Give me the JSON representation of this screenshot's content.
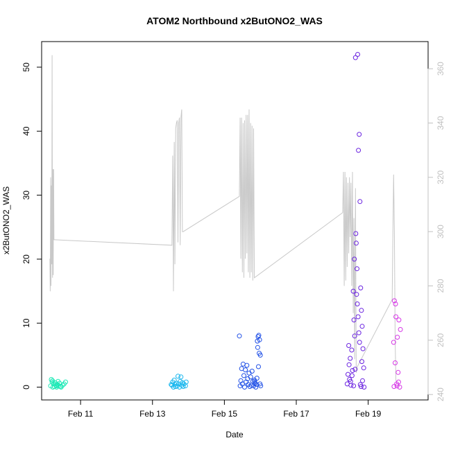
{
  "chart_data": {
    "type": "scatter",
    "title": "ATOM2 Northbound x2ButONO2_WAS",
    "xlabel": "Date",
    "ylabel": "x2ButONO2_WAS",
    "x_axis": {
      "type": "date",
      "range": [
        "2017-02-09T22:00",
        "2017-02-20T16:00"
      ],
      "ticks": [
        {
          "label": "Feb 11",
          "date": "2017-02-11"
        },
        {
          "label": "Feb 13",
          "date": "2017-02-13"
        },
        {
          "label": "Feb 15",
          "date": "2017-02-15"
        },
        {
          "label": "Feb 17",
          "date": "2017-02-17"
        },
        {
          "label": "Feb 19",
          "date": "2017-02-19"
        }
      ]
    },
    "y_axis": {
      "range": [
        -2,
        54
      ],
      "ticks": [
        0,
        10,
        20,
        30,
        40,
        50
      ]
    },
    "y2_axis": {
      "color": "#c0c0c0",
      "range": [
        238,
        370
      ],
      "ticks": [
        240,
        260,
        280,
        300,
        320,
        340,
        360
      ]
    },
    "grid": false,
    "legend": "none",
    "point_style": "open-circle",
    "line_color": "#c8c8c8",
    "series": [
      {
        "color": "#1de9b6",
        "points": [
          [
            "2017-02-10T04:00",
            0.2
          ],
          [
            "2017-02-10T04:30",
            1.2
          ],
          [
            "2017-02-10T05:00",
            0.8
          ],
          [
            "2017-02-10T05:30",
            0.0
          ],
          [
            "2017-02-10T06:00",
            0.5
          ],
          [
            "2017-02-10T06:30",
            0.1
          ],
          [
            "2017-02-10T07:00",
            0.7
          ],
          [
            "2017-02-10T07:30",
            0.3
          ],
          [
            "2017-02-10T08:00",
            0.0
          ],
          [
            "2017-02-10T08:30",
            0.4
          ],
          [
            "2017-02-10T09:00",
            0.9
          ],
          [
            "2017-02-10T09:30",
            0.2
          ],
          [
            "2017-02-10T10:00",
            0.6
          ],
          [
            "2017-02-10T10:30",
            0.1
          ],
          [
            "2017-02-10T11:00",
            0.0
          ],
          [
            "2017-02-10T12:00",
            0.3
          ],
          [
            "2017-02-10T13:00",
            0.5
          ],
          [
            "2017-02-10T14:00",
            0.8
          ],
          [
            "2017-02-10T05:15",
            1.0
          ],
          [
            "2017-02-10T08:15",
            0.2
          ]
        ]
      },
      {
        "color": "#17b6ee",
        "points": [
          [
            "2017-02-13T13:00",
            0.3
          ],
          [
            "2017-02-13T13:30",
            0.8
          ],
          [
            "2017-02-13T14:00",
            0.0
          ],
          [
            "2017-02-13T14:30",
            1.1
          ],
          [
            "2017-02-13T15:00",
            0.4
          ],
          [
            "2017-02-13T15:30",
            0.1
          ],
          [
            "2017-02-13T16:00",
            0.6
          ],
          [
            "2017-02-13T16:30",
            0.2
          ],
          [
            "2017-02-13T17:00",
            1.7
          ],
          [
            "2017-02-13T17:30",
            0.5
          ],
          [
            "2017-02-13T18:00",
            0.0
          ],
          [
            "2017-02-13T18:30",
            0.9
          ],
          [
            "2017-02-13T19:00",
            1.6
          ],
          [
            "2017-02-13T19:30",
            0.3
          ],
          [
            "2017-02-13T20:00",
            0.7
          ],
          [
            "2017-02-13T20:30",
            0.1
          ],
          [
            "2017-02-13T21:00",
            0.5
          ],
          [
            "2017-02-13T22:00",
            0.2
          ],
          [
            "2017-02-13T12:30",
            0.4
          ],
          [
            "2017-02-13T22:30",
            0.8
          ]
        ]
      },
      {
        "color": "#1f4fe6",
        "points": [
          [
            "2017-02-15T10:00",
            8.0
          ],
          [
            "2017-02-15T10:30",
            0.2
          ],
          [
            "2017-02-15T11:00",
            1.0
          ],
          [
            "2017-02-15T11:30",
            2.9
          ],
          [
            "2017-02-15T12:00",
            0.5
          ],
          [
            "2017-02-15T12:30",
            3.6
          ],
          [
            "2017-02-15T13:00",
            1.8
          ],
          [
            "2017-02-15T13:30",
            0.0
          ],
          [
            "2017-02-15T14:00",
            2.7
          ],
          [
            "2017-02-15T14:30",
            0.8
          ],
          [
            "2017-02-15T15:00",
            3.4
          ],
          [
            "2017-02-15T15:30",
            1.3
          ],
          [
            "2017-02-15T16:00",
            0.4
          ],
          [
            "2017-02-15T16:30",
            2.2
          ],
          [
            "2017-02-15T17:00",
            0.1
          ],
          [
            "2017-02-15T17:30",
            1.6
          ],
          [
            "2017-02-15T18:00",
            0.3
          ],
          [
            "2017-02-15T18:30",
            2.5
          ],
          [
            "2017-02-15T19:00",
            0.9
          ],
          [
            "2017-02-15T19:30",
            0.2
          ],
          [
            "2017-02-15T20:00",
            1.1
          ],
          [
            "2017-02-15T20:30",
            0.6
          ],
          [
            "2017-02-15T21:00",
            0.0
          ],
          [
            "2017-02-15T21:30",
            0.4
          ],
          [
            "2017-02-15T22:00",
            7.2
          ],
          [
            "2017-02-15T22:30",
            7.9
          ],
          [
            "2017-02-15T23:00",
            8.1
          ],
          [
            "2017-02-15T23:30",
            7.4
          ],
          [
            "2017-02-16T00:00",
            5.0
          ],
          [
            "2017-02-15T22:15",
            6.2
          ],
          [
            "2017-02-15T23:15",
            5.3
          ],
          [
            "2017-02-15T22:45",
            3.2
          ],
          [
            "2017-02-15T23:45",
            0.5
          ],
          [
            "2017-02-16T00:15",
            0.2
          ],
          [
            "2017-02-15T21:45",
            1.4
          ],
          [
            "2017-02-15T20:15",
            0.8
          ]
        ]
      },
      {
        "color": "#6a22e0",
        "points": [
          [
            "2017-02-18T10:00",
            0.5
          ],
          [
            "2017-02-18T10:30",
            2.0
          ],
          [
            "2017-02-18T11:00",
            6.5
          ],
          [
            "2017-02-18T11:30",
            1.2
          ],
          [
            "2017-02-18T12:00",
            4.5
          ],
          [
            "2017-02-18T12:30",
            0.3
          ],
          [
            "2017-02-18T13:00",
            5.8
          ],
          [
            "2017-02-18T13:30",
            2.6
          ],
          [
            "2017-02-18T14:00",
            15.0
          ],
          [
            "2017-02-18T14:30",
            10.5
          ],
          [
            "2017-02-18T15:00",
            8.0
          ],
          [
            "2017-02-18T15:30",
            51.5
          ],
          [
            "2017-02-18T15:45",
            24.0
          ],
          [
            "2017-02-18T16:00",
            22.5
          ],
          [
            "2017-02-18T16:30",
            18.5
          ],
          [
            "2017-02-18T17:00",
            52.0
          ],
          [
            "2017-02-18T17:30",
            37.0
          ],
          [
            "2017-02-18T18:00",
            39.5
          ],
          [
            "2017-02-18T18:30",
            29.0
          ],
          [
            "2017-02-18T19:00",
            15.5
          ],
          [
            "2017-02-18T19:30",
            12.0
          ],
          [
            "2017-02-18T20:00",
            9.5
          ],
          [
            "2017-02-18T20:30",
            6.0
          ],
          [
            "2017-02-18T21:00",
            3.0
          ],
          [
            "2017-02-18T16:15",
            14.5
          ],
          [
            "2017-02-18T16:45",
            13.0
          ],
          [
            "2017-02-18T17:15",
            11.0
          ],
          [
            "2017-02-18T17:45",
            8.5
          ],
          [
            "2017-02-18T18:15",
            7.0
          ],
          [
            "2017-02-18T18:45",
            0.4
          ],
          [
            "2017-02-18T19:15",
            0.1
          ],
          [
            "2017-02-18T19:45",
            4.0
          ],
          [
            "2017-02-18T11:15",
            3.5
          ],
          [
            "2017-02-18T12:15",
            0.9
          ],
          [
            "2017-02-18T13:15",
            1.8
          ],
          [
            "2017-02-18T14:15",
            0.2
          ],
          [
            "2017-02-18T15:15",
            2.8
          ],
          [
            "2017-02-18T20:15",
            1.0
          ],
          [
            "2017-02-18T21:15",
            0.0
          ],
          [
            "2017-02-18T14:45",
            20.0
          ]
        ]
      },
      {
        "color": "#d636e6",
        "points": [
          [
            "2017-02-19T17:00",
            7.0
          ],
          [
            "2017-02-19T17:30",
            13.5
          ],
          [
            "2017-02-19T18:00",
            3.8
          ],
          [
            "2017-02-19T18:30",
            11.0
          ],
          [
            "2017-02-19T19:00",
            0.5
          ],
          [
            "2017-02-19T19:30",
            7.8
          ],
          [
            "2017-02-19T20:00",
            2.3
          ],
          [
            "2017-02-19T20:30",
            10.5
          ],
          [
            "2017-02-19T21:00",
            0.0
          ],
          [
            "2017-02-19T21:30",
            9.0
          ],
          [
            "2017-02-19T17:15",
            0.1
          ],
          [
            "2017-02-19T18:15",
            13.0
          ],
          [
            "2017-02-19T19:15",
            0.2
          ],
          [
            "2017-02-19T20:15",
            0.8
          ]
        ]
      }
    ],
    "secondary_line": [
      [
        "2017-02-10T03:30",
        290
      ],
      [
        "2017-02-10T03:45",
        278
      ],
      [
        "2017-02-10T04:00",
        320
      ],
      [
        "2017-02-10T04:15",
        280
      ],
      [
        "2017-02-10T04:30",
        317
      ],
      [
        "2017-02-10T04:45",
        288
      ],
      [
        "2017-02-10T05:00",
        365
      ],
      [
        "2017-02-10T05:15",
        283
      ],
      [
        "2017-02-10T05:30",
        323
      ],
      [
        "2017-02-10T05:45",
        284
      ],
      [
        "2017-02-10T06:00",
        323
      ],
      [
        "2017-02-10T06:15",
        297
      ],
      [
        "2017-02-10T06:30",
        297
      ],
      [
        "2017-02-13T13:00",
        295
      ],
      [
        "2017-02-13T13:30",
        328
      ],
      [
        "2017-02-13T14:00",
        278
      ],
      [
        "2017-02-13T14:30",
        333
      ],
      [
        "2017-02-13T15:00",
        288
      ],
      [
        "2017-02-13T15:30",
        338
      ],
      [
        "2017-02-13T16:00",
        340
      ],
      [
        "2017-02-13T16:30",
        341
      ],
      [
        "2017-02-13T17:00",
        296
      ],
      [
        "2017-02-13T17:30",
        340
      ],
      [
        "2017-02-13T18:00",
        342
      ],
      [
        "2017-02-13T18:30",
        295
      ],
      [
        "2017-02-13T19:00",
        342
      ],
      [
        "2017-02-13T19:30",
        345
      ],
      [
        "2017-02-13T20:00",
        300
      ],
      [
        "2017-02-13T20:30",
        300
      ],
      [
        "2017-02-15T10:00",
        313
      ],
      [
        "2017-02-15T10:30",
        342
      ],
      [
        "2017-02-15T11:00",
        290
      ],
      [
        "2017-02-15T11:30",
        342
      ],
      [
        "2017-02-15T12:00",
        285
      ],
      [
        "2017-02-15T12:30",
        340
      ],
      [
        "2017-02-15T13:00",
        283
      ],
      [
        "2017-02-15T13:30",
        341
      ],
      [
        "2017-02-15T14:00",
        290
      ],
      [
        "2017-02-15T14:30",
        343
      ],
      [
        "2017-02-15T15:00",
        292
      ],
      [
        "2017-02-15T15:30",
        343
      ],
      [
        "2017-02-15T16:00",
        285
      ],
      [
        "2017-02-15T16:30",
        345
      ],
      [
        "2017-02-15T17:00",
        283
      ],
      [
        "2017-02-15T17:30",
        340
      ],
      [
        "2017-02-15T18:00",
        285
      ],
      [
        "2017-02-15T18:30",
        339
      ],
      [
        "2017-02-15T19:00",
        282
      ],
      [
        "2017-02-15T19:30",
        338
      ],
      [
        "2017-02-15T20:00",
        283
      ],
      [
        "2017-02-18T07:00",
        307
      ],
      [
        "2017-02-18T07:30",
        322
      ],
      [
        "2017-02-18T08:00",
        280
      ],
      [
        "2017-02-18T08:30",
        322
      ],
      [
        "2017-02-18T09:00",
        282
      ],
      [
        "2017-02-18T09:30",
        320
      ],
      [
        "2017-02-18T10:00",
        287
      ],
      [
        "2017-02-18T10:30",
        318
      ],
      [
        "2017-02-18T11:00",
        292
      ],
      [
        "2017-02-18T11:30",
        320
      ],
      [
        "2017-02-18T12:00",
        298
      ],
      [
        "2017-02-18T12:30",
        318
      ],
      [
        "2017-02-18T13:00",
        280
      ],
      [
        "2017-02-18T13:30",
        322
      ],
      [
        "2017-02-18T14:00",
        270
      ],
      [
        "2017-02-18T14:30",
        305
      ],
      [
        "2017-02-18T15:00",
        253
      ],
      [
        "2017-02-18T15:30",
        316
      ],
      [
        "2017-02-18T16:00",
        248
      ],
      [
        "2017-02-18T16:30",
        250
      ],
      [
        "2017-02-19T16:00",
        275
      ],
      [
        "2017-02-19T16:30",
        300
      ],
      [
        "2017-02-19T17:00",
        321
      ],
      [
        "2017-02-19T17:30",
        300
      ],
      [
        "2017-02-19T18:00",
        260
      ],
      [
        "2017-02-19T18:30",
        245
      ]
    ]
  }
}
